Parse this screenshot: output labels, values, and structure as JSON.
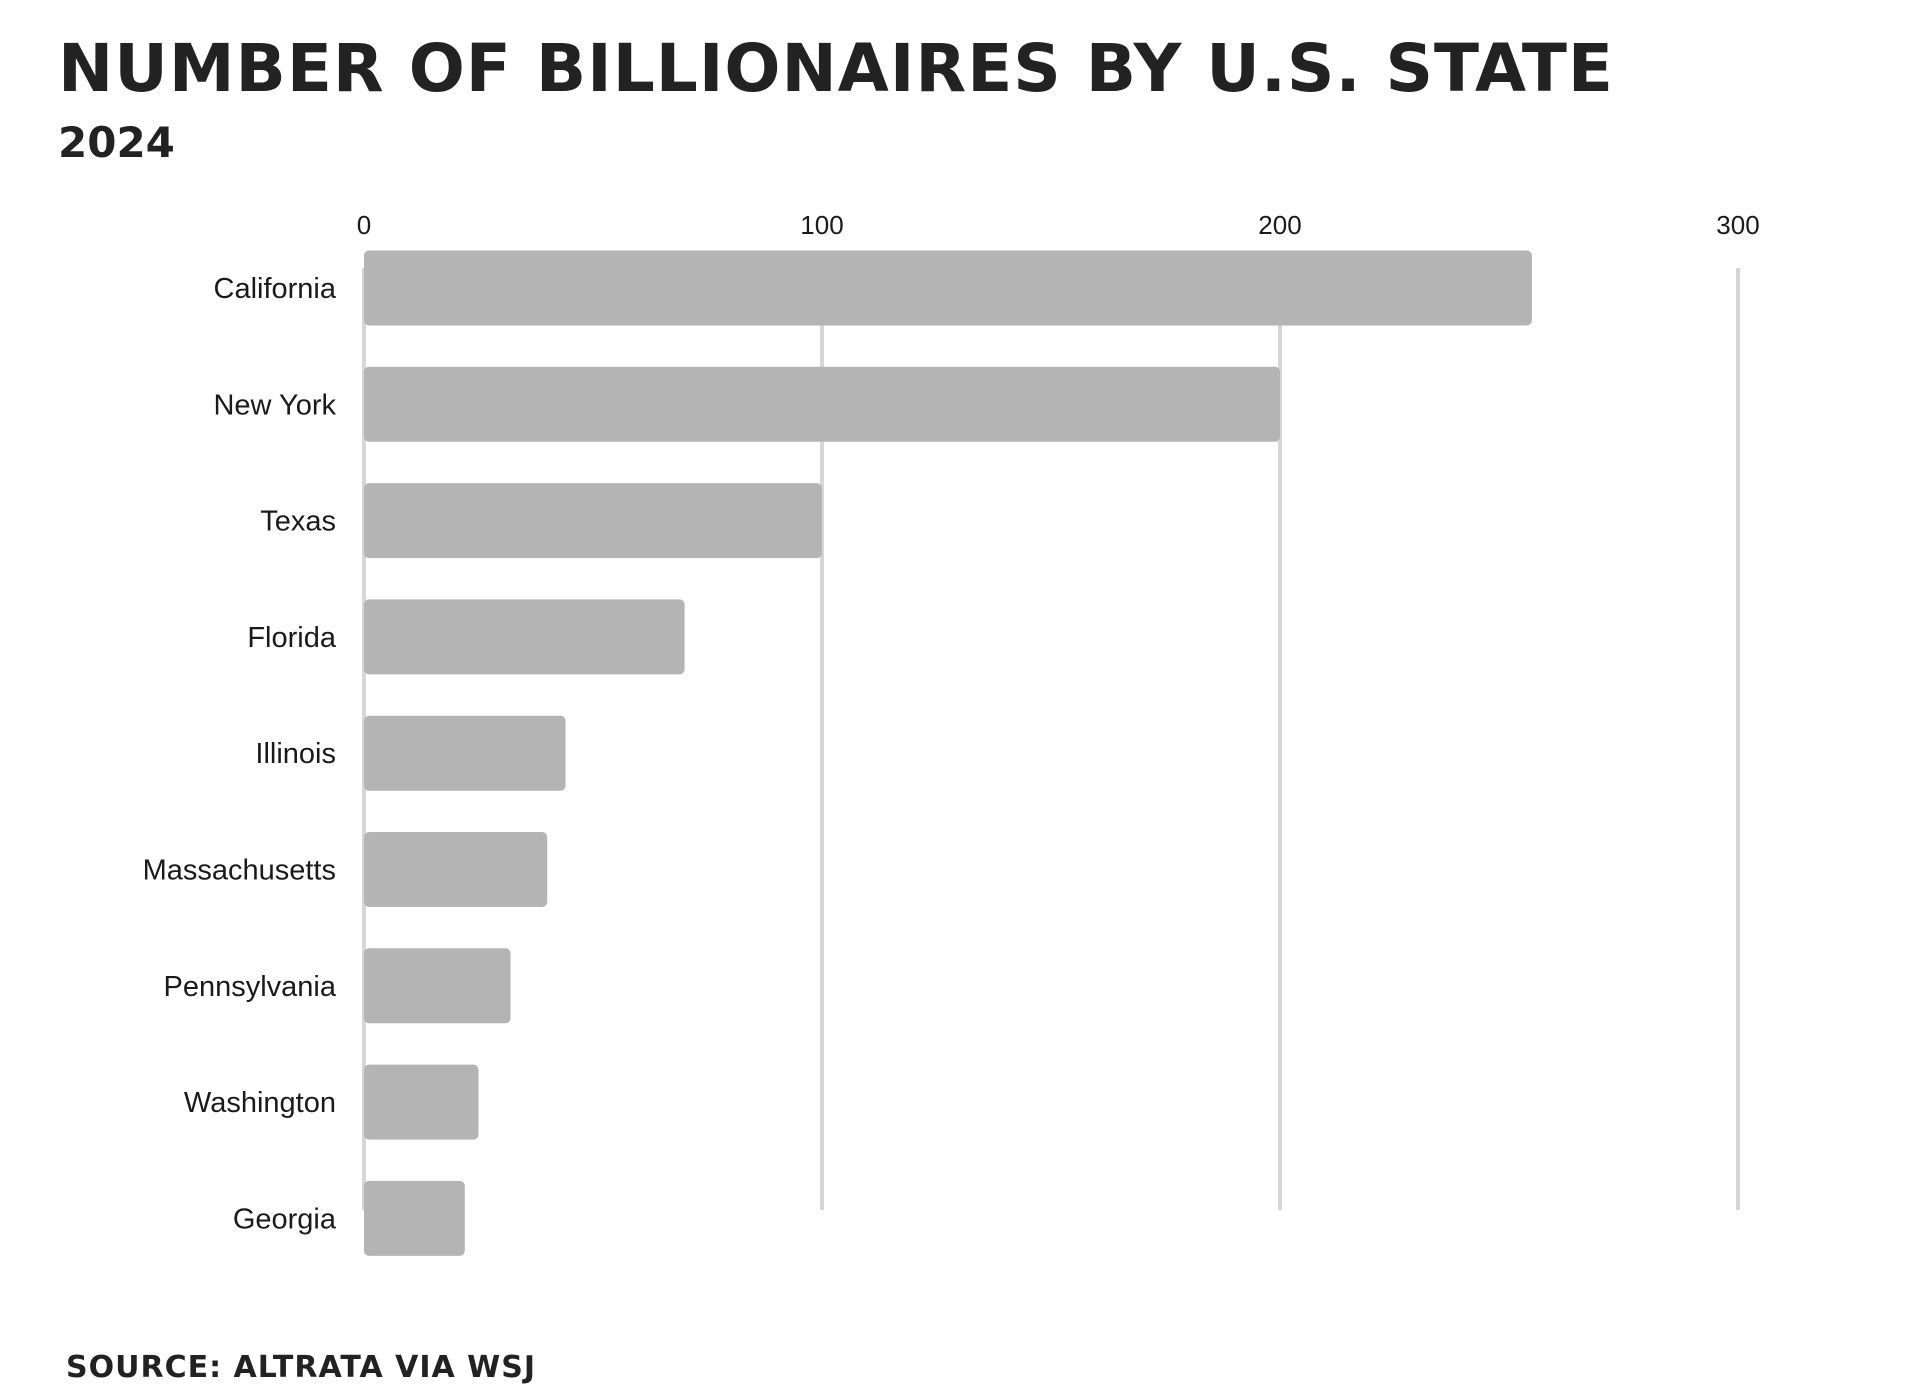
{
  "title": "NUMBER OF BILLIONAIRES BY U.S. STATE",
  "subtitle": "2024",
  "source": "SOURCE: ALTRATA VIA WSJ",
  "colors": {
    "bar": "#b5b4b4",
    "grid": "#d6d6d6",
    "text": "#222222"
  },
  "chart_data": {
    "type": "bar",
    "orientation": "horizontal",
    "categories": [
      "California",
      "New York",
      "Texas",
      "Florida",
      "Illinois",
      "Massachusetts",
      "Pennsylvania",
      "Washington",
      "Georgia"
    ],
    "values": [
      255,
      200,
      100,
      70,
      44,
      40,
      32,
      25,
      22
    ],
    "title": "NUMBER OF BILLIONAIRES BY U.S. STATE",
    "subtitle": "2024",
    "xlim": [
      0,
      300
    ],
    "xticks": [
      0,
      100,
      200,
      300
    ],
    "xtick_labels": [
      "0",
      "100",
      "200",
      "300"
    ],
    "axis_position": "top",
    "grid": true,
    "legend": "none"
  }
}
